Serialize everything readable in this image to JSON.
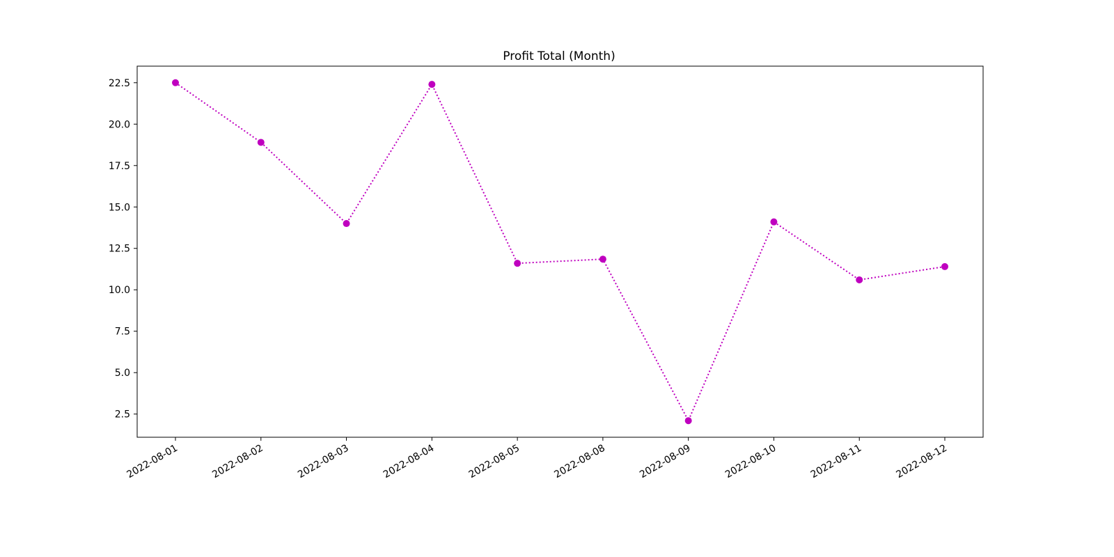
{
  "chart_data": {
    "type": "line",
    "title": "Profit Total (Month)",
    "xlabel": "",
    "ylabel": "",
    "categories": [
      "2022-08-01",
      "2022-08-02",
      "2022-08-03",
      "2022-08-04",
      "2022-08-05",
      "2022-08-08",
      "2022-08-09",
      "2022-08-10",
      "2022-08-11",
      "2022-08-12"
    ],
    "series": [
      {
        "values": [
          22.5,
          18.9,
          14.0,
          22.4,
          11.6,
          11.85,
          2.1,
          14.1,
          10.6,
          11.4
        ],
        "color": "#bf00bf",
        "line_style": "dotted",
        "marker": "circle"
      }
    ],
    "ylim": [
      1.1,
      23.5
    ],
    "yticks": [
      2.5,
      5.0,
      7.5,
      10.0,
      12.5,
      15.0,
      17.5,
      20.0,
      22.5
    ],
    "ytick_labels": [
      "2.5",
      "5.0",
      "7.5",
      "10.0",
      "12.5",
      "15.0",
      "17.5",
      "20.0",
      "22.5"
    ],
    "grid": false,
    "legend": "none"
  }
}
